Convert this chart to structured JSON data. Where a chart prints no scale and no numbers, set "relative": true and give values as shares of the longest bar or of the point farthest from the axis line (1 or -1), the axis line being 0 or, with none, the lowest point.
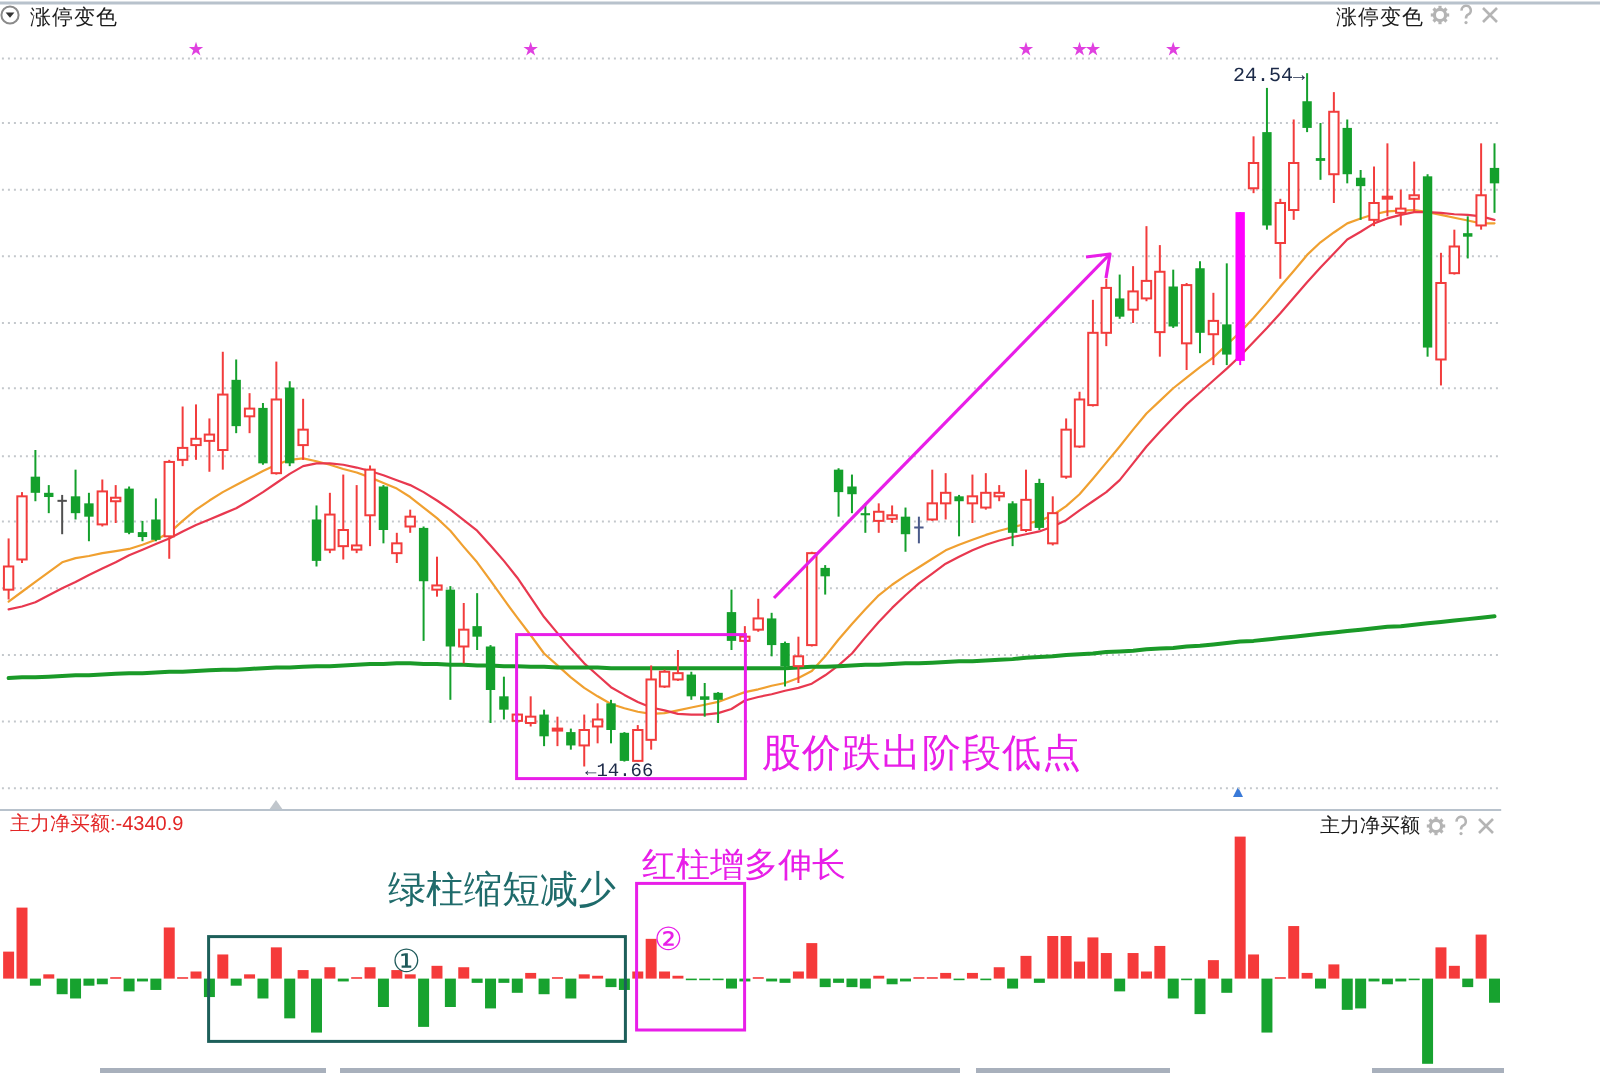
{
  "chart_data": [
    {
      "type": "candlestick",
      "title": "涨停变色",
      "subtitle": "涨停变色",
      "categories": [
        null,
        null,
        null,
        null,
        null,
        null,
        null,
        null,
        null,
        null,
        null,
        null,
        null,
        null,
        null,
        null,
        null,
        null,
        null,
        null,
        null,
        null,
        null,
        null,
        null,
        null,
        null,
        null,
        null,
        null,
        null,
        null,
        null,
        null,
        null,
        null,
        null,
        null,
        null,
        null,
        null,
        null,
        null,
        null,
        null,
        null,
        null,
        null,
        null,
        null,
        null,
        null,
        null,
        null,
        null,
        null,
        null,
        null,
        null,
        null,
        null,
        null,
        null,
        null,
        null,
        null,
        null,
        null,
        null,
        null,
        null,
        null,
        null,
        null,
        null,
        null,
        null,
        null,
        null,
        null,
        null,
        null,
        null,
        null,
        null,
        null,
        null,
        null,
        null,
        null,
        null,
        null,
        null,
        null,
        null,
        null,
        null,
        null,
        null,
        null,
        null,
        null,
        null,
        null,
        null,
        null,
        null,
        null,
        null,
        null,
        null,
        null
      ],
      "ohlc": [
        [
          17.18,
          17.91,
          17.04,
          17.51
        ],
        [
          17.61,
          18.57,
          17.56,
          18.51
        ],
        [
          18.79,
          19.17,
          18.44,
          18.56
        ],
        [
          18.56,
          18.67,
          18.27,
          18.5
        ],
        [
          18.46,
          18.53,
          17.97,
          18.44
        ],
        [
          18.51,
          18.89,
          18.18,
          18.27
        ],
        [
          18.41,
          18.56,
          17.87,
          18.22
        ],
        [
          18.11,
          18.75,
          18.08,
          18.58
        ],
        [
          18.44,
          18.67,
          18.13,
          18.49
        ],
        [
          18.62,
          18.65,
          17.97,
          17.99
        ],
        [
          18.0,
          18.16,
          17.87,
          17.93
        ],
        [
          18.18,
          18.48,
          17.87,
          17.89
        ],
        [
          17.94,
          19.03,
          17.62,
          19.0
        ],
        [
          19.03,
          19.79,
          18.94,
          19.2
        ],
        [
          19.24,
          19.82,
          19.03,
          19.33
        ],
        [
          19.3,
          19.62,
          18.86,
          19.39
        ],
        [
          19.17,
          20.57,
          18.89,
          19.96
        ],
        [
          20.17,
          20.46,
          19.41,
          19.51
        ],
        [
          19.65,
          19.98,
          19.41,
          19.76
        ],
        [
          19.77,
          19.84,
          18.96,
          18.98
        ],
        [
          18.84,
          20.43,
          18.82,
          19.89
        ],
        [
          20.06,
          20.15,
          18.94,
          18.98
        ],
        [
          19.24,
          19.9,
          19.03,
          19.46
        ],
        [
          18.18,
          18.38,
          17.51,
          17.59
        ],
        [
          17.75,
          18.56,
          17.7,
          18.25
        ],
        [
          17.8,
          18.82,
          17.61,
          18.03
        ],
        [
          17.75,
          18.67,
          17.7,
          17.81
        ],
        [
          18.24,
          18.95,
          17.8,
          18.89
        ],
        [
          18.65,
          18.67,
          17.84,
          18.03
        ],
        [
          17.7,
          17.99,
          17.56,
          17.84
        ],
        [
          18.08,
          18.32,
          17.99,
          18.22
        ],
        [
          18.06,
          18.08,
          16.45,
          17.3
        ],
        [
          17.18,
          17.65,
          17.08,
          17.24
        ],
        [
          17.18,
          17.23,
          15.61,
          16.37
        ],
        [
          16.37,
          16.99,
          16.13,
          16.61
        ],
        [
          16.66,
          17.13,
          16.32,
          16.51
        ],
        [
          16.37,
          16.39,
          15.28,
          15.75
        ],
        [
          15.66,
          15.94,
          15.33,
          15.47
        ],
        [
          15.31,
          15.42,
          15.28,
          15.4
        ],
        [
          15.28,
          15.66,
          15.23,
          15.37
        ],
        [
          15.4,
          15.47,
          14.95,
          15.09
        ],
        [
          15.18,
          15.37,
          14.95,
          15.2
        ],
        [
          15.15,
          15.2,
          14.9,
          14.96
        ],
        [
          14.96,
          15.4,
          14.66,
          15.18
        ],
        [
          15.23,
          15.56,
          14.99,
          15.33
        ],
        [
          15.56,
          15.61,
          14.99,
          15.18
        ],
        [
          15.14,
          15.15,
          14.73,
          14.74
        ],
        [
          14.74,
          15.25,
          14.73,
          15.18
        ],
        [
          15.04,
          16.1,
          14.9,
          15.9
        ],
        [
          15.8,
          16.04,
          15.78,
          16.01
        ],
        [
          15.9,
          16.32,
          15.88,
          15.99
        ],
        [
          15.97,
          16.01,
          15.61,
          15.66
        ],
        [
          15.66,
          15.85,
          15.37,
          15.61
        ],
        [
          15.71,
          15.72,
          15.28,
          15.61
        ],
        [
          16.86,
          17.18,
          16.32,
          16.45
        ],
        [
          16.45,
          16.66,
          16.42,
          16.51
        ],
        [
          16.61,
          17.05,
          16.58,
          16.77
        ],
        [
          16.77,
          16.85,
          16.23,
          16.39
        ],
        [
          16.42,
          16.44,
          15.8,
          16.09
        ],
        [
          16.09,
          16.51,
          15.85,
          16.23
        ],
        [
          16.39,
          17.72,
          16.37,
          17.7
        ],
        [
          17.49,
          17.53,
          17.11,
          17.37
        ],
        [
          18.89,
          18.91,
          18.22,
          18.57
        ],
        [
          18.65,
          18.82,
          18.27,
          18.54
        ],
        [
          18.27,
          18.41,
          17.99,
          18.24
        ],
        [
          18.16,
          18.41,
          17.99,
          18.29
        ],
        [
          18.19,
          18.38,
          18.13,
          18.24
        ],
        [
          18.22,
          18.35,
          17.72,
          17.97
        ],
        [
          18.08,
          18.22,
          17.84,
          18.08
        ],
        [
          18.18,
          18.89,
          18.16,
          18.41
        ],
        [
          18.41,
          18.84,
          18.18,
          18.56
        ],
        [
          18.51,
          18.53,
          17.94,
          18.44
        ],
        [
          18.41,
          18.82,
          18.13,
          18.51
        ],
        [
          18.35,
          18.84,
          18.32,
          18.56
        ],
        [
          18.51,
          18.67,
          18.44,
          18.56
        ],
        [
          18.41,
          18.44,
          17.8,
          17.99
        ],
        [
          18.03,
          18.89,
          18.0,
          18.46
        ],
        [
          18.7,
          18.76,
          18.03,
          18.06
        ],
        [
          17.84,
          18.51,
          17.81,
          18.27
        ],
        [
          18.79,
          19.62,
          18.76,
          19.46
        ],
        [
          19.22,
          20.0,
          19.2,
          19.89
        ],
        [
          19.81,
          21.31,
          19.79,
          20.84
        ],
        [
          20.84,
          21.61,
          20.65,
          21.48
        ],
        [
          21.33,
          21.67,
          21.04,
          21.07
        ],
        [
          21.17,
          21.79,
          20.98,
          21.43
        ],
        [
          21.33,
          22.36,
          21.29,
          21.58
        ],
        [
          20.85,
          22.09,
          20.5,
          21.71
        ],
        [
          21.5,
          21.74,
          20.91,
          20.93
        ],
        [
          20.69,
          21.55,
          20.31,
          21.52
        ],
        [
          21.76,
          21.86,
          20.55,
          20.84
        ],
        [
          20.82,
          21.41,
          20.38,
          21.01
        ],
        [
          20.96,
          21.83,
          20.38,
          20.53
        ],
        [
          20.44,
          22.56,
          20.38,
          22.56
        ],
        [
          22.9,
          23.64,
          22.83,
          23.26
        ],
        [
          23.7,
          24.33,
          22.31,
          22.37
        ],
        [
          22.12,
          22.75,
          21.61,
          22.69
        ],
        [
          22.59,
          23.88,
          22.45,
          23.26
        ],
        [
          24.14,
          24.54,
          23.7,
          23.76
        ],
        [
          23.33,
          23.83,
          23.02,
          23.29
        ],
        [
          23.1,
          24.27,
          22.69,
          23.99
        ],
        [
          23.76,
          23.88,
          22.97,
          23.1
        ],
        [
          23.05,
          23.16,
          22.45,
          22.93
        ],
        [
          22.45,
          23.21,
          22.36,
          22.69
        ],
        [
          22.76,
          23.54,
          22.5,
          22.78
        ],
        [
          22.55,
          22.88,
          22.37,
          22.61
        ],
        [
          22.75,
          23.28,
          22.55,
          22.8
        ],
        [
          23.07,
          23.1,
          20.5,
          20.63
        ],
        [
          20.46,
          21.98,
          20.09,
          21.55
        ],
        [
          21.69,
          22.31,
          21.67,
          22.07
        ],
        [
          22.26,
          22.5,
          21.9,
          22.21
        ],
        [
          22.37,
          23.54,
          22.31,
          22.8
        ],
        [
          23.19,
          23.54,
          22.55,
          22.97
        ]
      ],
      "colors": [
        "#f23c3c",
        "#f23c3c",
        "#14a02c",
        "#14a02c",
        "#505050",
        "#14a02c",
        "#14a02c",
        "#f23c3c",
        "#f23c3c",
        "#14a02c",
        "#14a02c",
        "#14a02c",
        "#f23c3c",
        "#f23c3c",
        "#f23c3c",
        "#f23c3c",
        "#f23c3c",
        "#14a02c",
        "#f23c3c",
        "#14a02c",
        "#f23c3c",
        "#14a02c",
        "#f23c3c",
        "#14a02c",
        "#f23c3c",
        "#f23c3c",
        "#f23c3c",
        "#f23c3c",
        "#14a02c",
        "#f23c3c",
        "#f23c3c",
        "#14a02c",
        "#f23c3c",
        "#14a02c",
        "#f23c3c",
        "#14a02c",
        "#14a02c",
        "#14a02c",
        "#f23c3c",
        "#f23c3c",
        "#14a02c",
        "#f23c3c",
        "#14a02c",
        "#f23c3c",
        "#f23c3c",
        "#14a02c",
        "#14a02c",
        "#f23c3c",
        "#f23c3c",
        "#f23c3c",
        "#f23c3c",
        "#14a02c",
        "#14a02c",
        "#14a02c",
        "#14a02c",
        "#f23c3c",
        "#f23c3c",
        "#14a02c",
        "#14a02c",
        "#f23c3c",
        "#f23c3c",
        "#14a02c",
        "#14a02c",
        "#14a02c",
        "#14a02c",
        "#f23c3c",
        "#f23c3c",
        "#14a02c",
        "#4a5a8a",
        "#f23c3c",
        "#f23c3c",
        "#14a02c",
        "#f23c3c",
        "#f23c3c",
        "#f23c3c",
        "#14a02c",
        "#f23c3c",
        "#14a02c",
        "#f23c3c",
        "#f23c3c",
        "#f23c3c",
        "#f23c3c",
        "#f23c3c",
        "#14a02c",
        "#f23c3c",
        "#f23c3c",
        "#f23c3c",
        "#14a02c",
        "#f23c3c",
        "#14a02c",
        "#f23c3c",
        "#14a02c",
        "#ff00ff",
        "#f23c3c",
        "#14a02c",
        "#f23c3c",
        "#f23c3c",
        "#14a02c",
        "#14a02c",
        "#f23c3c",
        "#14a02c",
        "#14a02c",
        "#f23c3c",
        "#f23c3c",
        "#f23c3c",
        "#f23c3c",
        "#14a02c",
        "#f23c3c",
        "#f23c3c",
        "#14a02c",
        "#f23c3c",
        "#14a02c"
      ],
      "series": [
        {
          "type": "line",
          "color": "#f0a030",
          "values": [
            17.01,
            17.15,
            17.29,
            17.43,
            17.57,
            17.63,
            17.66,
            17.7,
            17.73,
            17.76,
            17.82,
            17.89,
            17.99,
            18.16,
            18.32,
            18.45,
            18.57,
            18.67,
            18.77,
            18.87,
            18.96,
            19.03,
            19.05,
            19.01,
            18.96,
            18.9,
            18.85,
            18.78,
            18.7,
            18.62,
            18.5,
            18.35,
            18.2,
            18.02,
            17.79,
            17.57,
            17.31,
            17.04,
            16.78,
            16.53,
            16.27,
            16.1,
            15.93,
            15.78,
            15.66,
            15.55,
            15.49,
            15.44,
            15.41,
            15.42,
            15.46,
            15.5,
            15.54,
            15.58,
            15.65,
            15.72,
            15.76,
            15.81,
            15.85,
            15.92,
            16.02,
            16.23,
            16.47,
            16.69,
            16.9,
            17.1,
            17.25,
            17.38,
            17.5,
            17.62,
            17.74,
            17.82,
            17.89,
            17.96,
            18.02,
            18.07,
            18.12,
            18.16,
            18.24,
            18.37,
            18.54,
            18.76,
            18.99,
            19.22,
            19.46,
            19.69,
            19.87,
            20.05,
            20.2,
            20.35,
            20.49,
            20.67,
            20.85,
            21.05,
            21.27,
            21.5,
            21.72,
            21.95,
            22.13,
            22.27,
            22.4,
            22.47,
            22.53,
            22.57,
            22.58,
            22.59,
            22.56,
            22.52,
            22.48,
            22.44,
            22.4,
            22.4
          ]
        },
        {
          "type": "line",
          "color": "#e8384f",
          "values": [
            16.9,
            16.94,
            17.0,
            17.1,
            17.2,
            17.29,
            17.39,
            17.48,
            17.57,
            17.67,
            17.75,
            17.83,
            17.91,
            18.01,
            18.1,
            18.18,
            18.26,
            18.34,
            18.45,
            18.57,
            18.7,
            18.83,
            18.94,
            18.98,
            18.98,
            18.96,
            18.92,
            18.87,
            18.81,
            18.74,
            18.67,
            18.57,
            18.45,
            18.32,
            18.17,
            18.02,
            17.81,
            17.59,
            17.35,
            17.07,
            16.79,
            16.56,
            16.34,
            16.13,
            15.96,
            15.79,
            15.68,
            15.58,
            15.5,
            15.46,
            15.41,
            15.4,
            15.4,
            15.42,
            15.48,
            15.6,
            15.65,
            15.69,
            15.74,
            15.78,
            15.84,
            15.96,
            16.1,
            16.27,
            16.5,
            16.72,
            16.92,
            17.1,
            17.27,
            17.41,
            17.55,
            17.65,
            17.74,
            17.82,
            17.88,
            17.93,
            17.97,
            18.01,
            18.08,
            18.17,
            18.31,
            18.44,
            18.57,
            18.74,
            18.98,
            19.22,
            19.43,
            19.63,
            19.82,
            19.99,
            20.16,
            20.33,
            20.51,
            20.71,
            20.91,
            21.12,
            21.34,
            21.56,
            21.77,
            21.97,
            22.17,
            22.28,
            22.4,
            22.47,
            22.52,
            22.56,
            22.56,
            22.55,
            22.53,
            22.52,
            22.5,
            22.45
          ]
        },
        {
          "type": "line",
          "color": "#1a9a28",
          "values": [
            15.92,
            15.93,
            15.93,
            15.94,
            15.95,
            15.96,
            15.96,
            15.97,
            15.98,
            15.99,
            15.99,
            16.0,
            16.01,
            16.01,
            16.02,
            16.03,
            16.04,
            16.04,
            16.05,
            16.06,
            16.07,
            16.07,
            16.08,
            16.09,
            16.09,
            16.1,
            16.11,
            16.12,
            16.12,
            16.13,
            16.13,
            16.12,
            16.12,
            16.11,
            16.11,
            16.1,
            16.1,
            16.09,
            16.09,
            16.08,
            16.08,
            16.07,
            16.07,
            16.07,
            16.07,
            16.06,
            16.06,
            16.06,
            16.06,
            16.06,
            16.06,
            16.06,
            16.06,
            16.06,
            16.06,
            16.06,
            16.06,
            16.06,
            16.06,
            16.07,
            16.08,
            16.08,
            16.09,
            16.1,
            16.11,
            16.11,
            16.12,
            16.13,
            16.13,
            16.14,
            16.15,
            16.16,
            16.16,
            16.17,
            16.18,
            16.19,
            16.21,
            16.22,
            16.23,
            16.25,
            16.26,
            16.27,
            16.29,
            16.3,
            16.31,
            16.33,
            16.34,
            16.35,
            16.37,
            16.38,
            16.4,
            16.42,
            16.44,
            16.45,
            16.47,
            16.49,
            16.51,
            16.53,
            16.55,
            16.57,
            16.59,
            16.61,
            16.63,
            16.65,
            16.66,
            16.68,
            16.7,
            16.72,
            16.74,
            16.76,
            16.78,
            16.8
          ]
        },
        {
          "type": "scatter",
          "color": "#e040e0",
          "marker": "star",
          "values": [
            null,
            null,
            null,
            null,
            null,
            null,
            null,
            null,
            null,
            null,
            null,
            null,
            null,
            null,
            24.88,
            null,
            null,
            null,
            null,
            null,
            null,
            null,
            null,
            null,
            null,
            null,
            null,
            null,
            null,
            null,
            null,
            null,
            null,
            null,
            null,
            null,
            null,
            null,
            null,
            24.88,
            null,
            null,
            null,
            null,
            null,
            null,
            null,
            null,
            null,
            null,
            null,
            null,
            null,
            null,
            null,
            null,
            null,
            null,
            null,
            null,
            null,
            null,
            null,
            null,
            null,
            null,
            null,
            null,
            null,
            null,
            null,
            null,
            null,
            null,
            null,
            null,
            24.88,
            null,
            null,
            null,
            24.88,
            24.88,
            null,
            null,
            null,
            null,
            null,
            24.88,
            null,
            null,
            null,
            null,
            null,
            null,
            null,
            null,
            null,
            null,
            null,
            null,
            null,
            null,
            null,
            null,
            null,
            null,
            null,
            null,
            null,
            null,
            null,
            null
          ]
        }
      ],
      "ylim": [
        14.04,
        25.54
      ],
      "yticks": [
        {
          "value": 14.35,
          "label": null
        },
        {
          "value": 15.3,
          "label": null
        },
        {
          "value": 16.25,
          "label": null
        },
        {
          "value": 17.2,
          "label": null
        },
        {
          "value": 18.15,
          "label": null
        },
        {
          "value": 19.08,
          "label": null
        },
        {
          "value": 20.05,
          "label": null
        },
        {
          "value": 20.98,
          "label": null
        },
        {
          "value": 21.93,
          "label": null
        },
        {
          "value": 22.88,
          "label": null
        },
        {
          "value": 23.83,
          "label": null
        },
        {
          "value": 24.75,
          "label": null
        }
      ],
      "grid": "y",
      "annotations": [
        "24.54→",
        "←14.66",
        "股价跌出阶段低点"
      ]
    },
    {
      "type": "bar",
      "title": "主力净买额:-4340.9",
      "subtitle": "主力净买额",
      "relative": true,
      "categories": [
        null,
        null,
        null,
        null,
        null,
        null,
        null,
        null,
        null,
        null,
        null,
        null,
        null,
        null,
        null,
        null,
        null,
        null,
        null,
        null,
        null,
        null,
        null,
        null,
        null,
        null,
        null,
        null,
        null,
        null,
        null,
        null,
        null,
        null,
        null,
        null,
        null,
        null,
        null,
        null,
        null,
        null,
        null,
        null,
        null,
        null,
        null,
        null,
        null,
        null,
        null,
        null,
        null,
        null,
        null,
        null,
        null,
        null,
        null,
        null,
        null,
        null,
        null,
        null,
        null,
        null,
        null,
        null,
        null,
        null,
        null,
        null,
        null,
        null,
        null,
        null,
        null,
        null,
        null,
        null,
        null,
        null,
        null,
        null,
        null,
        null,
        null,
        null,
        null,
        null,
        null,
        null,
        null,
        null,
        null,
        null,
        null,
        null,
        null,
        null,
        null,
        null,
        null,
        null,
        null,
        null,
        null,
        null,
        null,
        null,
        null,
        null
      ],
      "values": [
        0.19,
        0.5,
        -0.05,
        0.03,
        -0.11,
        -0.14,
        -0.05,
        -0.04,
        0.01,
        -0.09,
        -0.02,
        -0.08,
        0.36,
        0.01,
        0.05,
        -0.13,
        0.17,
        -0.05,
        0.03,
        -0.14,
        0.22,
        -0.28,
        0.06,
        -0.38,
        0.08,
        -0.02,
        0.01,
        0.08,
        -0.2,
        0.06,
        0.03,
        -0.34,
        0.09,
        -0.2,
        0.08,
        -0.03,
        -0.21,
        -0.03,
        -0.1,
        0.04,
        -0.11,
        0.01,
        -0.14,
        0.03,
        0.02,
        -0.06,
        -0.08,
        0.05,
        0.28,
        0.05,
        0.02,
        -0.01,
        -0.01,
        -0.01,
        -0.07,
        -0.02,
        0.01,
        -0.02,
        -0.03,
        0.05,
        0.25,
        -0.06,
        -0.03,
        -0.06,
        -0.07,
        0.02,
        -0.04,
        -0.02,
        0.01,
        0.01,
        0.04,
        -0.01,
        0.04,
        -0.01,
        0.08,
        -0.07,
        0.16,
        -0.03,
        0.3,
        0.3,
        0.12,
        0.29,
        0.18,
        -0.09,
        0.18,
        0.05,
        0.23,
        -0.14,
        -0.01,
        -0.25,
        0.13,
        -0.1,
        1,
        0.17,
        -0.38,
        0.01,
        0.37,
        0.04,
        -0.07,
        0.1,
        -0.22,
        -0.21,
        -0.02,
        -0.04,
        -0.02,
        -0.01,
        -0.6,
        0.22,
        0.09,
        -0.06,
        0.31,
        -0.17
      ],
      "colors": [
        "#f53a3a",
        "#f53a3a",
        "#17a22f",
        "#f53a3a",
        "#17a22f",
        "#17a22f",
        "#17a22f",
        "#17a22f",
        "#f53a3a",
        "#17a22f",
        "#17a22f",
        "#17a22f",
        "#f53a3a",
        "#f53a3a",
        "#f53a3a",
        "#17a22f",
        "#f53a3a",
        "#17a22f",
        "#f53a3a",
        "#17a22f",
        "#f53a3a",
        "#17a22f",
        "#f53a3a",
        "#17a22f",
        "#f53a3a",
        "#17a22f",
        "#f53a3a",
        "#f53a3a",
        "#17a22f",
        "#f53a3a",
        "#f53a3a",
        "#17a22f",
        "#f53a3a",
        "#17a22f",
        "#f53a3a",
        "#17a22f",
        "#17a22f",
        "#17a22f",
        "#17a22f",
        "#f53a3a",
        "#17a22f",
        "#f53a3a",
        "#17a22f",
        "#f53a3a",
        "#f53a3a",
        "#17a22f",
        "#17a22f",
        "#f53a3a",
        "#f53a3a",
        "#f53a3a",
        "#f53a3a",
        "#17a22f",
        "#17a22f",
        "#17a22f",
        "#17a22f",
        "#17a22f",
        "#f53a3a",
        "#17a22f",
        "#17a22f",
        "#f53a3a",
        "#f53a3a",
        "#17a22f",
        "#17a22f",
        "#17a22f",
        "#17a22f",
        "#f53a3a",
        "#17a22f",
        "#17a22f",
        "#f53a3a",
        "#f53a3a",
        "#f53a3a",
        "#17a22f",
        "#f53a3a",
        "#17a22f",
        "#f53a3a",
        "#17a22f",
        "#f53a3a",
        "#17a22f",
        "#f53a3a",
        "#f53a3a",
        "#f53a3a",
        "#f53a3a",
        "#f53a3a",
        "#17a22f",
        "#f53a3a",
        "#f53a3a",
        "#f53a3a",
        "#17a22f",
        "#17a22f",
        "#17a22f",
        "#f53a3a",
        "#17a22f",
        "#f53a3a",
        "#f53a3a",
        "#17a22f",
        "#f53a3a",
        "#f53a3a",
        "#f53a3a",
        "#17a22f",
        "#f53a3a",
        "#17a22f",
        "#17a22f",
        "#17a22f",
        "#17a22f",
        "#17a22f",
        "#17a22f",
        "#17a22f",
        "#f53a3a",
        "#f53a3a",
        "#17a22f",
        "#f53a3a",
        "#17a22f"
      ],
      "annotations": [
        "绿柱缩短减少",
        "红柱增多伸长",
        "①",
        "②"
      ]
    }
  ]
}
